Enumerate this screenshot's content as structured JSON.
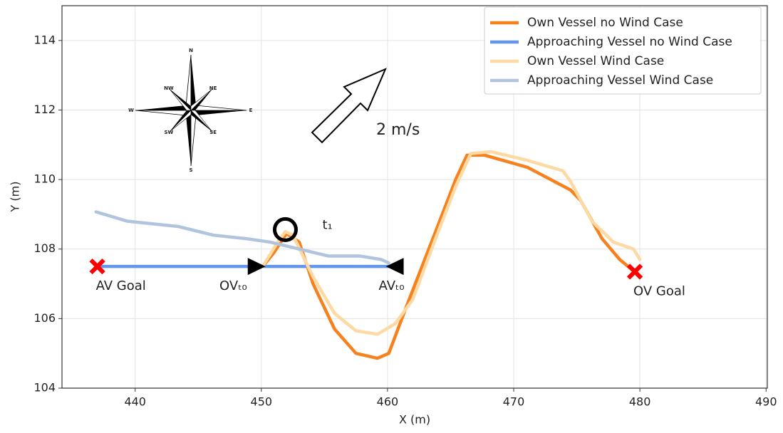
{
  "chart_data": {
    "type": "line",
    "xlabel": "X (m)",
    "ylabel": "Y (m)",
    "xlim": [
      434.2,
      490.1
    ],
    "ylim": [
      104,
      115
    ],
    "xticks": [
      440,
      450,
      460,
      470,
      480,
      490
    ],
    "yticks": [
      104,
      106,
      108,
      110,
      112,
      114
    ],
    "grid": true,
    "legend": "upper right",
    "series": [
      {
        "name": "Own Vessel no Wind Case",
        "color": "#f5821f",
        "x": [
          450.2,
          451.0,
          452.0,
          453.0,
          454.1,
          455.8,
          457.5,
          459.2,
          460.1,
          461.5,
          463.7,
          465.4,
          466.3,
          467.7,
          471.1,
          474.5,
          475.3,
          477.0,
          478.4,
          479.4
        ],
        "values": [
          107.54,
          107.9,
          108.45,
          108.2,
          107.0,
          105.7,
          105.0,
          104.86,
          105.0,
          106.35,
          108.4,
          110.0,
          110.7,
          110.7,
          110.35,
          109.7,
          109.4,
          108.3,
          107.7,
          107.4
        ]
      },
      {
        "name": "Approaching Vessel no Wind Case",
        "color": "#6495ed",
        "x": [
          437.2,
          460.3
        ],
        "values": [
          107.5,
          107.5
        ]
      },
      {
        "name": "Own Vessel Wind Case",
        "color": "#fdd9a3",
        "x": [
          450.1,
          451.3,
          451.9,
          452.5,
          454.1,
          455.8,
          457.5,
          459.2,
          460.6,
          462.0,
          463.7,
          465.4,
          466.6,
          468.2,
          471.1,
          473.9,
          474.5,
          476.2,
          477.9,
          479.5,
          480.0
        ],
        "values": [
          107.5,
          108.2,
          108.5,
          108.4,
          107.2,
          106.15,
          105.65,
          105.55,
          105.85,
          106.55,
          108.2,
          109.8,
          110.75,
          110.8,
          110.55,
          110.25,
          109.95,
          108.8,
          108.2,
          108.0,
          107.7
        ]
      },
      {
        "name": "Approaching Vessel Wind Case",
        "color": "#b0c4de",
        "x": [
          436.9,
          439.4,
          443.4,
          446.2,
          448.8,
          450.7,
          453.0,
          455.3,
          457.8,
          459.5,
          460.1
        ],
        "values": [
          109.07,
          108.8,
          108.65,
          108.4,
          108.3,
          108.2,
          108.0,
          107.8,
          107.8,
          107.7,
          107.6
        ]
      }
    ],
    "markers": [
      {
        "label": "AV Goal",
        "shape": "cross",
        "color": "#ff0000",
        "x": 437.0,
        "y": 107.5
      },
      {
        "label": "OV Goal",
        "shape": "cross",
        "color": "#ff0000",
        "x": 479.6,
        "y": 107.35
      },
      {
        "label": "OVₜ₀",
        "shape": "triangle-right",
        "color": "#000000",
        "x": 449.6,
        "y": 107.5
      },
      {
        "label": "AVₜ₀",
        "shape": "triangle-left",
        "color": "#000000",
        "x": 460.6,
        "y": 107.5
      },
      {
        "label": "t₁",
        "shape": "circle",
        "color": "#000000",
        "x": 451.9,
        "y": 108.56
      }
    ],
    "wind_label": "2 m/s",
    "compass": [
      "N",
      "NE",
      "E",
      "SE",
      "S",
      "SW",
      "W",
      "NW"
    ]
  }
}
